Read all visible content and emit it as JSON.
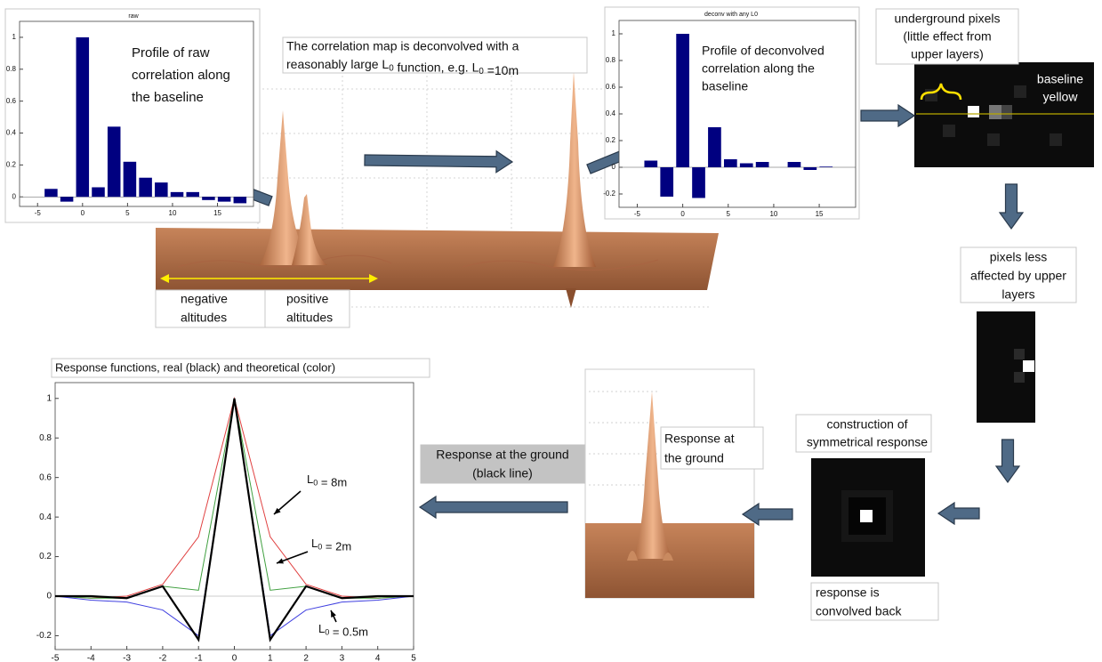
{
  "chart_data": [
    {
      "type": "bar",
      "title": "raw",
      "x": [
        -3.5,
        -1.75,
        0,
        1.75,
        3.5,
        5.25,
        7,
        8.75,
        10.5,
        12.25,
        14,
        15.75,
        17.5
      ],
      "values": [
        0.05,
        -0.03,
        1,
        0.06,
        0.44,
        0.22,
        0.12,
        0.09,
        0.03,
        0.03,
        -0.02,
        -0.03,
        -0.04
      ],
      "color": "#000080",
      "xlim": [
        -7,
        19
      ],
      "ylim": [
        -0.06,
        1.1
      ],
      "xticks": [
        -5,
        0,
        5,
        10,
        15
      ],
      "yticks": [
        0,
        0.2,
        0.4,
        0.6,
        0.8,
        1
      ]
    },
    {
      "type": "bar",
      "title": "deconv with any L0",
      "x": [
        -3.5,
        -1.75,
        0,
        1.75,
        3.5,
        5.25,
        7,
        8.75,
        10.5,
        12.25,
        14,
        15.75,
        17.5
      ],
      "values": [
        0.05,
        -0.22,
        1,
        -0.23,
        0.3,
        0.06,
        0.03,
        0.04,
        0,
        0.04,
        -0.02,
        0.005,
        0
      ],
      "color": "#000080",
      "xlim": [
        -7,
        19
      ],
      "ylim": [
        -0.3,
        1.1
      ],
      "xticks": [
        -5,
        0,
        5,
        10,
        15
      ],
      "yticks": [
        -0.2,
        0,
        0.2,
        0.4,
        0.6,
        0.8,
        1
      ]
    },
    {
      "type": "line",
      "title": "Response functions, real (black) and theoretical (color)",
      "x": [
        -5,
        -4,
        -3,
        -2,
        -1,
        0,
        1,
        2,
        3,
        4,
        5
      ],
      "series": [
        {
          "color": "#e04040",
          "values": [
            0,
            -0.01,
            0,
            0.06,
            0.3,
            1,
            0.3,
            0.06,
            0,
            -0.01,
            0
          ]
        },
        {
          "color": "#40a040",
          "values": [
            0,
            -0.01,
            -0.01,
            0.05,
            0.03,
            1,
            0.03,
            0.05,
            -0.01,
            -0.01,
            0
          ]
        },
        {
          "color": "#4040e0",
          "values": [
            0,
            -0.02,
            -0.03,
            -0.07,
            -0.2,
            1,
            -0.2,
            -0.07,
            -0.03,
            -0.02,
            0
          ]
        },
        {
          "color": "#000000",
          "values": [
            0,
            0,
            -0.01,
            0.05,
            -0.22,
            1,
            -0.22,
            0.05,
            -0.01,
            0,
            0
          ]
        }
      ],
      "xlim": [
        -5,
        5
      ],
      "ylim": [
        -0.27,
        1.08
      ],
      "xticks": [
        -5,
        -4,
        -3,
        -2,
        -1,
        0,
        1,
        2,
        3,
        4,
        5
      ],
      "yticks": [
        -0.2,
        0,
        0.2,
        0.4,
        0.6,
        0.8,
        1
      ],
      "annotations": [
        [
          "L",
          {
            "sub": "0"
          },
          " = 8m"
        ],
        [
          "L",
          {
            "sub": "0"
          },
          " = 2m"
        ],
        [
          "L",
          {
            "sub": "0"
          },
          " = 0.5m"
        ]
      ]
    }
  ],
  "notes": [
    {
      "lines": [
        "Profile of raw",
        "correlation along",
        "the baseline"
      ]
    },
    {
      "lines": [
        "The correlation map is deconvolved with a",
        [
          "reasonably large L",
          {
            "sub": "0"
          },
          " function, e.g. L",
          {
            "sub": "0"
          },
          " =10m"
        ]
      ]
    },
    {
      "lines": [
        "Profile of deconvolved",
        "correlation along the",
        "baseline"
      ]
    },
    {
      "lines": [
        "underground pixels",
        "(little effect from",
        "upper layers)"
      ]
    },
    {
      "lines": [
        "baseline",
        "yellow"
      ]
    },
    {
      "lines": [
        "pixels less",
        "affected by upper",
        "layers"
      ]
    },
    {
      "lines": [
        "construction of",
        "symmetrical response"
      ]
    },
    {
      "lines": [
        "response is",
        "convolved back"
      ]
    },
    {
      "lines": [
        "Response at",
        "the ground"
      ]
    },
    {
      "lines": [
        "Response at the ground",
        "(black line)"
      ]
    },
    {
      "lines": [
        "negative",
        "altitudes"
      ]
    },
    {
      "lines": [
        "positive",
        "altitudes"
      ]
    }
  ]
}
